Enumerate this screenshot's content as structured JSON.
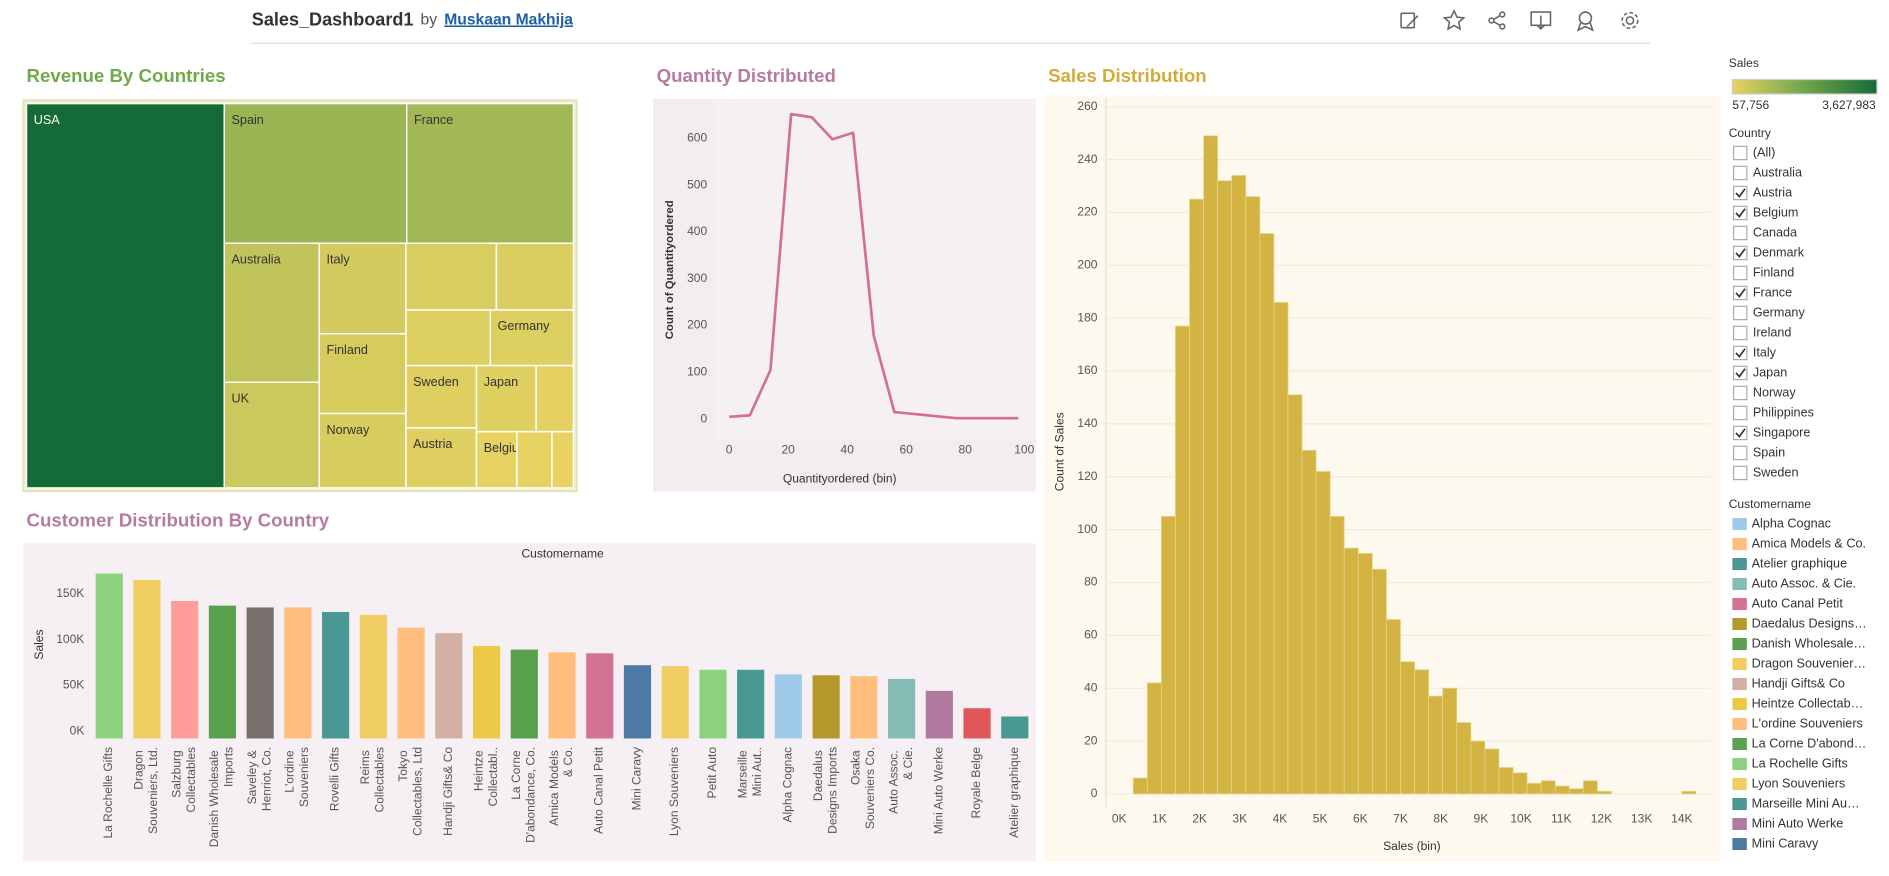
{
  "header": {
    "title": "Sales_Dashboard1",
    "by": "by",
    "author": "Muskaan Makhija"
  },
  "chart_data": [
    {
      "type": "treemap",
      "title": "Revenue By Countries",
      "title_color": "#71a94a",
      "categories": [
        "USA",
        "Spain",
        "France",
        "Australia",
        "UK",
        "Italy",
        "Finland",
        "Norway",
        null,
        null,
        null,
        "Germany",
        "Sweden",
        "Austria",
        "Japan",
        null,
        "Belgium",
        null,
        null
      ],
      "values": [
        3627983,
        1215686,
        1110916,
        630623,
        478880,
        374674,
        329581,
        307463,
        288488,
        245637,
        224078,
        220472,
        210014,
        202063,
        188167,
        117713,
        108413,
        94015,
        57756
      ]
    },
    {
      "type": "line",
      "title": "Quantity Distributed",
      "title_color": "#b57ca0",
      "xlabel": "Quantityordered (bin)",
      "ylabel": "Count of Quantityordered",
      "color": "#d46f8e",
      "x": [
        0,
        7,
        14,
        21,
        28,
        35,
        42,
        49,
        56,
        77,
        98
      ],
      "values": [
        5,
        8,
        105,
        652,
        645,
        598,
        612,
        178,
        15,
        2,
        2
      ],
      "xlim": [
        -5,
        104
      ],
      "ylim": [
        -44,
        682
      ],
      "xticks": [
        0,
        20,
        40,
        60,
        80,
        100
      ],
      "yticks": [
        0,
        100,
        200,
        300,
        400,
        500,
        600
      ]
    },
    {
      "type": "histogram",
      "title": "Sales Distribution",
      "title_color": "#d4aa3a",
      "xlabel": "Sales (bin)",
      "ylabel": "Count of Sales",
      "color": "#d3b443",
      "grid": true,
      "bins": [
        350,
        700,
        1050,
        1400,
        1750,
        2100,
        2450,
        2800,
        3150,
        3500,
        3850,
        4200,
        4550,
        4900,
        5250,
        5600,
        5950,
        6300,
        6650,
        7000,
        7350,
        7700,
        8050,
        8400,
        8750,
        9100,
        9450,
        9800,
        10150,
        10500,
        10850,
        11200,
        11550,
        11900,
        12250,
        12600,
        12950,
        13300,
        13650,
        14000,
        14350
      ],
      "values": [
        6,
        42,
        105,
        177,
        225,
        249,
        232,
        234,
        226,
        212,
        186,
        151,
        130,
        122,
        105,
        93,
        91,
        85,
        66,
        50,
        47,
        37,
        40,
        27,
        20,
        17,
        10,
        8,
        4,
        5,
        3,
        2,
        5,
        1,
        0,
        0,
        0,
        0,
        0,
        1
      ],
      "xlim": [
        -330,
        14700
      ],
      "ylim": [
        -5,
        263
      ],
      "xticks": [
        {
          "value": 0,
          "label": "0K"
        },
        {
          "value": 1000,
          "label": "1K"
        },
        {
          "value": 2000,
          "label": "2K"
        },
        {
          "value": 3000,
          "label": "3K"
        },
        {
          "value": 4000,
          "label": "4K"
        },
        {
          "value": 5000,
          "label": "5K"
        },
        {
          "value": 6000,
          "label": "6K"
        },
        {
          "value": 7000,
          "label": "7K"
        },
        {
          "value": 8000,
          "label": "8K"
        },
        {
          "value": 9000,
          "label": "9K"
        },
        {
          "value": 10000,
          "label": "10K"
        },
        {
          "value": 11000,
          "label": "11K"
        },
        {
          "value": 12000,
          "label": "12K"
        },
        {
          "value": 13000,
          "label": "13K"
        },
        {
          "value": 14000,
          "label": "14K"
        }
      ],
      "yticks": [
        0,
        20,
        40,
        60,
        80,
        100,
        120,
        140,
        160,
        180,
        200,
        220,
        240,
        260
      ]
    },
    {
      "type": "bar",
      "title": "Customer Distribution By Country",
      "title_color": "#b57ca0",
      "xlabel": "Customername",
      "ylabel": "Sales",
      "categories": [
        "La Rochelle Gifts",
        "Dragon Souveniers, Ltd.",
        "Salzburg Collectables",
        "Danish Wholesale Imports",
        "Saveley & Henriot, Co.",
        "L'ordine Souveniers",
        "Rovelli Gifts",
        "Reims Collectables",
        "Tokyo Collectables, Ltd",
        "Handji Gifts& Co",
        "Heintze Collectabl..",
        "La Corne D'abondance, Co.",
        "Amica Models & Co.",
        "Auto Canal Petit",
        "Mini Caravy",
        "Lyon Souveniers",
        "Petit Auto",
        "Marseille Mini Aut..",
        "Alpha Cognac",
        "Daedalus Designs Imports",
        "Osaka Souveniers Co.",
        "Auto Assoc. & Cie.",
        "Mini Auto Werke",
        "Royale Belge",
        "Atelier graphique"
      ],
      "values": [
        180000,
        173000,
        150000,
        145000,
        143000,
        143000,
        138000,
        135000,
        121000,
        115000,
        101000,
        97000,
        94000,
        93000,
        80000,
        79000,
        75000,
        75000,
        70000,
        69000,
        68000,
        65000,
        52000,
        33000,
        24000
      ],
      "colors": [
        "#8cd17d",
        "#f1ce63",
        "#ff9d9a",
        "#59a14f",
        "#79706e",
        "#ffbe7d",
        "#499894",
        "#f1ce63",
        "#ffbe7d",
        "#d4b0a4",
        "#edc948",
        "#59a14f",
        "#ffbe7d",
        "#d37295",
        "#4e79a7",
        "#f1ce63",
        "#8cd17d",
        "#499894",
        "#a0cbe8",
        "#b6992d",
        "#ffbe7d",
        "#86bcb6",
        "#b07aa1",
        "#e15759",
        "#499894"
      ],
      "ylim": [
        0,
        188000
      ],
      "yticks": [
        {
          "value": 0,
          "label": "0K"
        },
        {
          "value": 50000,
          "label": "50K"
        },
        {
          "value": 100000,
          "label": "100K"
        },
        {
          "value": 150000,
          "label": "150K"
        }
      ]
    }
  ],
  "legend": {
    "title": "Sales",
    "colors": [
      "#e8d362",
      "#6fa54b",
      "#156b37"
    ],
    "low": {
      "value": 57756,
      "label": "57,756"
    },
    "high": {
      "value": 3627983,
      "label": "3,627,983"
    }
  },
  "filters": {
    "country": {
      "title": "Country",
      "items": [
        {
          "label": "(All)",
          "checked": false
        },
        {
          "label": "Australia",
          "checked": false
        },
        {
          "label": "Austria",
          "checked": true
        },
        {
          "label": "Belgium",
          "checked": true
        },
        {
          "label": "Canada",
          "checked": false
        },
        {
          "label": "Denmark",
          "checked": true
        },
        {
          "label": "Finland",
          "checked": false
        },
        {
          "label": "France",
          "checked": true
        },
        {
          "label": "Germany",
          "checked": false
        },
        {
          "label": "Ireland",
          "checked": false
        },
        {
          "label": "Italy",
          "checked": true
        },
        {
          "label": "Japan",
          "checked": true
        },
        {
          "label": "Norway",
          "checked": false
        },
        {
          "label": "Philippines",
          "checked": false
        },
        {
          "label": "Singapore",
          "checked": true
        },
        {
          "label": "Spain",
          "checked": false
        },
        {
          "label": "Sweden",
          "checked": false
        }
      ]
    },
    "customername": {
      "title": "Customername",
      "items": [
        {
          "label": "Alpha Cognac",
          "color": "#a0cbe8"
        },
        {
          "label": "Amica Models & Co.",
          "color": "#ffbe7d"
        },
        {
          "label": "Atelier graphique",
          "color": "#499894"
        },
        {
          "label": "Auto Assoc. & Cie.",
          "color": "#86bcb6"
        },
        {
          "label": "Auto Canal Petit",
          "color": "#d37295"
        },
        {
          "label": "Daedalus Designs…",
          "color": "#b6992d"
        },
        {
          "label": "Danish Wholesale…",
          "color": "#59a14f"
        },
        {
          "label": "Dragon Souvenier…",
          "color": "#f1ce63"
        },
        {
          "label": "Handji Gifts& Co",
          "color": "#d4b0a4"
        },
        {
          "label": "Heintze Collectab…",
          "color": "#edc948"
        },
        {
          "label": "L'ordine Souveniers",
          "color": "#ffbe7d"
        },
        {
          "label": "La Corne D'abond…",
          "color": "#59a14f"
        },
        {
          "label": "La Rochelle Gifts",
          "color": "#8cd17d"
        },
        {
          "label": "Lyon Souveniers",
          "color": "#f1ce63"
        },
        {
          "label": "Marseille Mini Au…",
          "color": "#499894"
        },
        {
          "label": "Mini Auto Werke",
          "color": "#b07aa1"
        },
        {
          "label": "Mini Caravy",
          "color": "#4e79a7"
        }
      ]
    }
  }
}
